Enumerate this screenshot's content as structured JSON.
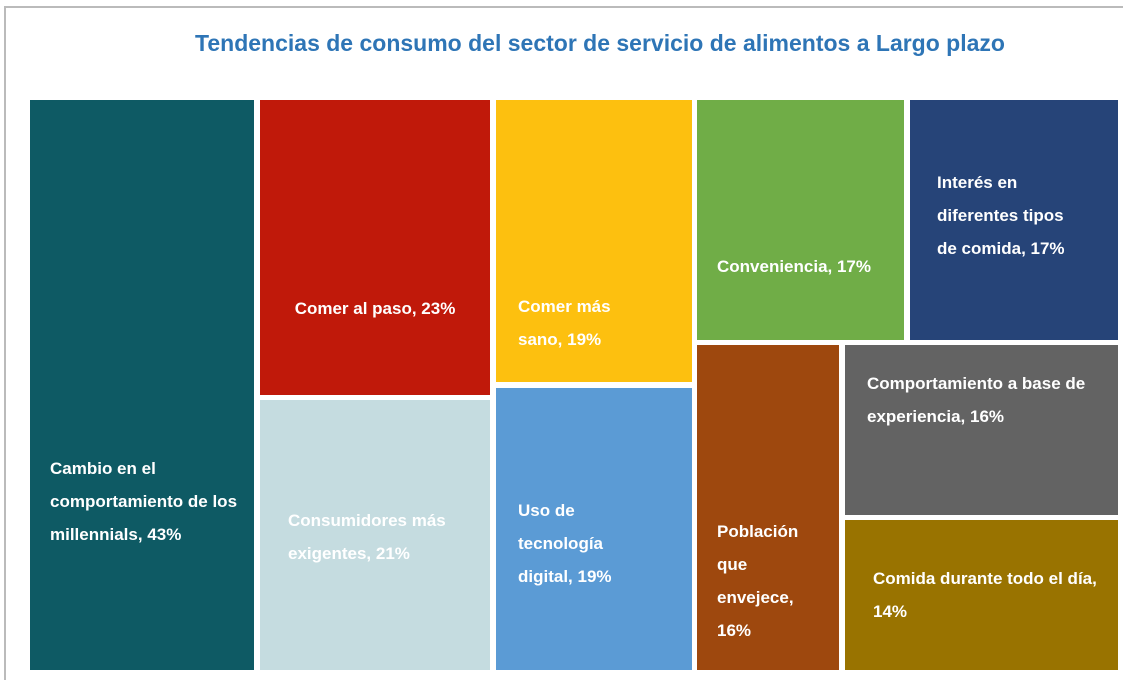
{
  "chart_data": {
    "type": "treemap",
    "title": "Tendencias de consumo del sector de servicio de alimentos a Largo plazo",
    "labels": [
      "Cambio en el comportamiento de los millennials, 43%",
      "Comer al paso, 23%",
      "Consumidores más exigentes, 21%",
      "Comer más sano, 19%",
      "Uso de tecnología digital, 19%",
      "Conveniencia, 17%",
      "Interés en diferentes tipos de comida, 17%",
      "Población que envejece, 16%",
      "Comportamiento a base de experiencia, 16%",
      "Comida durante todo el día, 14%"
    ],
    "values": [
      43,
      23,
      21,
      19,
      19,
      17,
      17,
      16,
      16,
      14
    ],
    "colors": [
      "#0e5a64",
      "#c0190a",
      "#c5dce0",
      "#fdc00f",
      "#5b9bd5",
      "#70ad47",
      "#264478",
      "#9e480e",
      "#636363",
      "#997300"
    ]
  }
}
